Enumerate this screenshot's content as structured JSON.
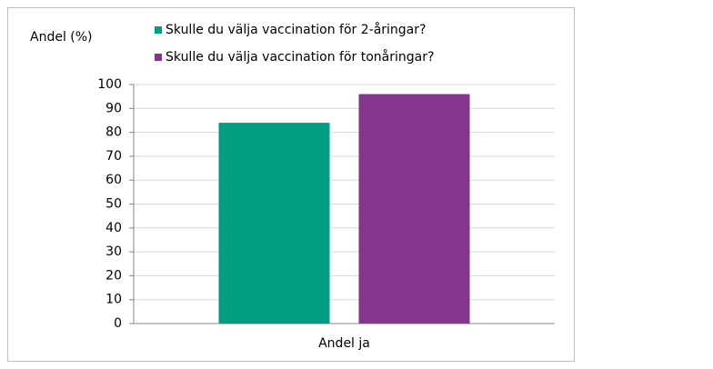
{
  "chart_data": {
    "type": "bar",
    "y_label": "Andel (%)",
    "categories": [
      "Andel ja"
    ],
    "series": [
      {
        "name": "Skulle du välja vaccination för 2-åringar?",
        "color": "#009e82",
        "values": [
          84
        ]
      },
      {
        "name": "Skulle du välja vaccination för tonåringar?",
        "color": "#84368c",
        "values": [
          96
        ]
      }
    ],
    "ylim": [
      0,
      100
    ],
    "yticks": [
      0,
      10,
      20,
      30,
      40,
      50,
      60,
      70,
      80,
      90,
      100
    ],
    "grid": true
  }
}
